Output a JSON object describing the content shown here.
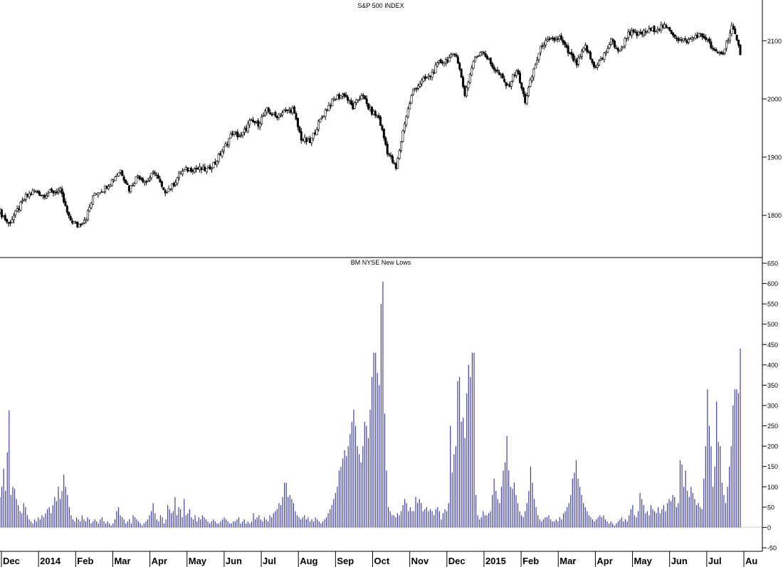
{
  "chart_data": [
    {
      "type": "candlestick",
      "title": "S&P 500 INDEX",
      "ylim": [
        1730,
        2170
      ],
      "yticks": [
        1800,
        1900,
        2000,
        2100
      ],
      "grid": false,
      "color": "#000000",
      "x": [
        "2013-11-25",
        "2013-12-02",
        "2013-12-09",
        "2013-12-16",
        "2013-12-23",
        "2013-12-30",
        "2014-01-06",
        "2014-01-13",
        "2014-01-20",
        "2014-01-27",
        "2014-02-03",
        "2014-02-10",
        "2014-02-17",
        "2014-02-24",
        "2014-03-03",
        "2014-03-10",
        "2014-03-17",
        "2014-03-24",
        "2014-03-31",
        "2014-04-07",
        "2014-04-14",
        "2014-04-21",
        "2014-04-28",
        "2014-05-05",
        "2014-05-12",
        "2014-05-19",
        "2014-05-26",
        "2014-06-02",
        "2014-06-09",
        "2014-06-16",
        "2014-06-23",
        "2014-06-30",
        "2014-07-07",
        "2014-07-14",
        "2014-07-21",
        "2014-07-28",
        "2014-08-04",
        "2014-08-11",
        "2014-08-18",
        "2014-08-25",
        "2014-09-01",
        "2014-09-08",
        "2014-09-15",
        "2014-09-22",
        "2014-09-29",
        "2014-10-06",
        "2014-10-13",
        "2014-10-20",
        "2014-10-27",
        "2014-11-03",
        "2014-11-10",
        "2014-11-17",
        "2014-11-24",
        "2014-12-01",
        "2014-12-08",
        "2014-12-15",
        "2014-12-22",
        "2014-12-29",
        "2015-01-05",
        "2015-01-12",
        "2015-01-19",
        "2015-01-26",
        "2015-02-02",
        "2015-02-09",
        "2015-02-16",
        "2015-02-23",
        "2015-03-02",
        "2015-03-09",
        "2015-03-16",
        "2015-03-23",
        "2015-03-30",
        "2015-04-06",
        "2015-04-13",
        "2015-04-20",
        "2015-04-27",
        "2015-05-04",
        "2015-05-11",
        "2015-05-18",
        "2015-05-25",
        "2015-06-01",
        "2015-06-08",
        "2015-06-15",
        "2015-06-22",
        "2015-06-29",
        "2015-07-06",
        "2015-07-13",
        "2015-07-20"
      ],
      "close": [
        1806,
        1785,
        1808,
        1832,
        1842,
        1835,
        1840,
        1842,
        1795,
        1782,
        1797,
        1838,
        1845,
        1860,
        1878,
        1845,
        1869,
        1857,
        1875,
        1840,
        1850,
        1874,
        1880,
        1880,
        1878,
        1891,
        1915,
        1942,
        1935,
        1960,
        1958,
        1980,
        1970,
        1978,
        1982,
        1932,
        1925,
        1958,
        1985,
        2002,
        2008,
        1985,
        2008,
        1980,
        1968,
        1910,
        1880,
        1960,
        2015,
        2030,
        2040,
        2062,
        2068,
        2078,
        2008,
        2065,
        2085,
        2060,
        2042,
        2020,
        2050,
        1996,
        2050,
        2095,
        2100,
        2105,
        2080,
        2060,
        2090,
        2055,
        2070,
        2100,
        2080,
        2115,
        2110,
        2115,
        2120,
        2125,
        2115,
        2100,
        2100,
        2110,
        2105,
        2080,
        2078,
        2125,
        2080
      ]
    },
    {
      "type": "bar",
      "title": "BM NYSE New Lows",
      "ylim": [
        -50,
        650
      ],
      "yticks": [
        -50,
        0,
        50,
        100,
        150,
        200,
        250,
        300,
        350,
        400,
        450,
        500,
        550,
        600,
        650
      ],
      "grid": false,
      "color": "#3f3fa8",
      "values": [
        75,
        100,
        145,
        90,
        185,
        288,
        80,
        100,
        95,
        70,
        55,
        40,
        35,
        60,
        50,
        30,
        20,
        15,
        10,
        20,
        15,
        25,
        20,
        30,
        25,
        35,
        45,
        50,
        35,
        55,
        75,
        65,
        100,
        70,
        90,
        130,
        100,
        80,
        50,
        30,
        20,
        15,
        25,
        20,
        15,
        30,
        20,
        15,
        25,
        20,
        10,
        15,
        20,
        15,
        10,
        20,
        25,
        15,
        10,
        15,
        10,
        5,
        10,
        20,
        40,
        50,
        30,
        25,
        20,
        10,
        15,
        20,
        10,
        30,
        25,
        20,
        15,
        10,
        5,
        10,
        15,
        20,
        30,
        40,
        60,
        35,
        20,
        15,
        30,
        25,
        10,
        20,
        55,
        45,
        35,
        40,
        75,
        30,
        50,
        45,
        25,
        70,
        30,
        35,
        45,
        25,
        20,
        30,
        15,
        25,
        20,
        30,
        25,
        20,
        15,
        10,
        15,
        20,
        15,
        10,
        10,
        15,
        20,
        25,
        20,
        15,
        10,
        10,
        15,
        15,
        20,
        25,
        10,
        15,
        20,
        10,
        15,
        10,
        15,
        35,
        20,
        25,
        30,
        20,
        15,
        25,
        20,
        15,
        30,
        25,
        35,
        40,
        45,
        60,
        55,
        75,
        110,
        110,
        75,
        80,
        70,
        60,
        40,
        30,
        25,
        20,
        25,
        30,
        20,
        25,
        15,
        20,
        15,
        25,
        20,
        15,
        10,
        15,
        20,
        25,
        35,
        45,
        55,
        70,
        85,
        100,
        140,
        150,
        170,
        190,
        175,
        200,
        230,
        260,
        290,
        250,
        200,
        180,
        160,
        200,
        260,
        250,
        220,
        290,
        370,
        430,
        430,
        380,
        350,
        550,
        605,
        280,
        140,
        50,
        40,
        30,
        30,
        25,
        35,
        30,
        40,
        55,
        70,
        60,
        40,
        50,
        40,
        40,
        75,
        60,
        70,
        60,
        40,
        45,
        50,
        40,
        45,
        40,
        30,
        45,
        50,
        40,
        20,
        35,
        45,
        40,
        60,
        250,
        135,
        180,
        200,
        360,
        370,
        260,
        270,
        220,
        330,
        400,
        370,
        430,
        430,
        80,
        30,
        20,
        25,
        40,
        30,
        30,
        35,
        40,
        80,
        120,
        90,
        70,
        60,
        100,
        140,
        160,
        225,
        140,
        100,
        95,
        110,
        80,
        60,
        40,
        30,
        25,
        40,
        60,
        90,
        150,
        110,
        70,
        50,
        30,
        20,
        15,
        20,
        25,
        25,
        30,
        20,
        15,
        15,
        20,
        15,
        25,
        20,
        35,
        40,
        50,
        60,
        80,
        120,
        135,
        165,
        120,
        100,
        80,
        60,
        50,
        40,
        30,
        25,
        20,
        15,
        20,
        25,
        30,
        25,
        30,
        20,
        15,
        10,
        15,
        10,
        5,
        10,
        15,
        20,
        25,
        15,
        20,
        15,
        30,
        45,
        55,
        30,
        25,
        40,
        85,
        70,
        55,
        35,
        40,
        30,
        55,
        45,
        40,
        35,
        50,
        35,
        45,
        55,
        40,
        60,
        70,
        65,
        80,
        75,
        50,
        60,
        165,
        155,
        100,
        140,
        90,
        75,
        100,
        85,
        70,
        55,
        60,
        50,
        45,
        120,
        200,
        340,
        250,
        200,
        100,
        150,
        310,
        210,
        200,
        110,
        80,
        60,
        100,
        150,
        200,
        300,
        340,
        340,
        330,
        440
      ]
    }
  ],
  "x_axis": {
    "labels": [
      "Dec",
      "2014",
      "Feb",
      "Mar",
      "Apr",
      "May",
      "Jun",
      "Jul",
      "Aug",
      "Sep",
      "Oct",
      "Nov",
      "Dec",
      "2015",
      "Feb",
      "Mar",
      "Apr",
      "May",
      "Jun",
      "Jul",
      "Au"
    ]
  }
}
